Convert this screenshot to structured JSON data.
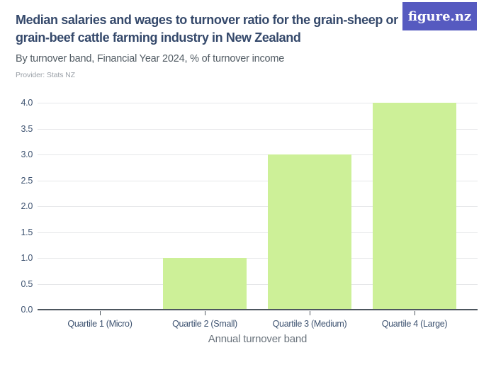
{
  "logo": {
    "text": "figure.nz",
    "background_color": "#565ac0",
    "text_color": "#ffffff"
  },
  "header": {
    "title": "Median salaries and wages to turnover ratio for the grain-sheep or grain-beef cattle farming industry in New Zealand",
    "subtitle": "By turnover band, Financial Year 2024, % of turnover income",
    "provider": "Provider: Stats NZ"
  },
  "chart_data": {
    "type": "bar",
    "title": "Median salaries and wages to turnover ratio for the grain-sheep or grain-beef cattle farming industry in New Zealand",
    "subtitle": "By turnover band, Financial Year 2024, % of turnover income",
    "categories": [
      "Quartile 1 (Micro)",
      "Quartile 2 (Small)",
      "Quartile 3 (Medium)",
      "Quartile 4 (Large)"
    ],
    "values": [
      0,
      1.0,
      3.0,
      4.0
    ],
    "xlabel": "Annual turnover band",
    "ylabel": "",
    "ylim": [
      0,
      4.0
    ],
    "y_ticks": [
      "0.0",
      "0.5",
      "1.0",
      "1.5",
      "2.0",
      "2.5",
      "3.0",
      "3.5",
      "4.0"
    ],
    "grid": true,
    "legend": "none",
    "bar_color": "#cdf098"
  },
  "colors": {
    "title": "#35496b",
    "subtitle": "#525c64",
    "provider": "#9ba1a8",
    "axis_text": "#3d5270",
    "axis_title": "#6a737c",
    "gridline": "#e6e7e9",
    "axis_line": "#4d565e",
    "bar": "#cdf098",
    "logo_background": "#565ac0"
  }
}
